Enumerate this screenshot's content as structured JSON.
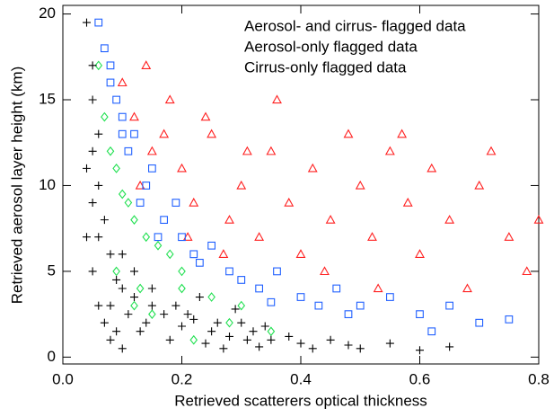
{
  "chart_data": {
    "type": "scatter",
    "xlabel": "Retrieved scatterers optical thickness",
    "ylabel": "Retrieved aerosol layer height (km)",
    "xlim": [
      0,
      0.8
    ],
    "ylim": [
      -0.4,
      20.5
    ],
    "xticks": [
      {
        "value": 0,
        "label": "0.0"
      },
      0.2,
      0.4,
      0.6,
      0.8
    ],
    "yticks": [
      0,
      5,
      10,
      15,
      20
    ],
    "grid": false,
    "legend": "upper right",
    "series": [
      {
        "name": "Aerosol- and cirrus- flagged data",
        "color": "#ff2020",
        "marker": "triangle",
        "x": [
          0.1,
          0.12,
          0.15,
          0.13,
          0.18,
          0.2,
          0.22,
          0.25,
          0.28,
          0.3,
          0.33,
          0.35,
          0.38,
          0.4,
          0.42,
          0.45,
          0.48,
          0.5,
          0.52,
          0.55,
          0.58,
          0.6,
          0.62,
          0.65,
          0.68,
          0.7,
          0.72,
          0.75,
          0.78,
          0.8,
          0.14,
          0.17,
          0.21,
          0.24,
          0.27,
          0.31,
          0.36,
          0.44,
          0.53,
          0.57
        ],
        "values": [
          16,
          14,
          12,
          10,
          15,
          11,
          9,
          13,
          8,
          10,
          7,
          12,
          9,
          6,
          11,
          8,
          13,
          10,
          7,
          12,
          9,
          6,
          11,
          8,
          4,
          10,
          12,
          7,
          5,
          8,
          17,
          13,
          7,
          14,
          6,
          12,
          15,
          5,
          4,
          13
        ]
      },
      {
        "name": "Aerosol-only flagged data",
        "color": "#2060ff",
        "marker": "square",
        "x": [
          0.06,
          0.07,
          0.08,
          0.09,
          0.1,
          0.11,
          0.12,
          0.14,
          0.15,
          0.17,
          0.19,
          0.2,
          0.22,
          0.25,
          0.28,
          0.3,
          0.33,
          0.36,
          0.4,
          0.43,
          0.46,
          0.5,
          0.55,
          0.6,
          0.65,
          0.7,
          0.75,
          0.08,
          0.1,
          0.13,
          0.16,
          0.23,
          0.35,
          0.48,
          0.62
        ],
        "values": [
          19.5,
          18,
          17,
          15,
          14,
          12,
          13,
          10,
          11,
          8,
          9,
          7,
          6,
          6.5,
          5,
          4.5,
          4,
          5,
          3.5,
          3,
          4,
          3,
          3.5,
          2.5,
          3,
          2,
          2.2,
          16,
          13,
          9,
          7,
          5.5,
          3.2,
          2.5,
          1.5
        ]
      },
      {
        "name": "Cirrus-only flagged data",
        "color": "#20e050",
        "marker": "diamond",
        "x": [
          0.06,
          0.07,
          0.08,
          0.09,
          0.1,
          0.11,
          0.12,
          0.14,
          0.16,
          0.18,
          0.2,
          0.09,
          0.12,
          0.15,
          0.2,
          0.25,
          0.3,
          0.35,
          0.28,
          0.22,
          0.13
        ],
        "values": [
          17,
          14,
          12,
          11,
          9.5,
          9,
          8,
          7,
          6.5,
          6,
          5,
          5,
          3,
          2.5,
          4,
          3.5,
          3,
          1.5,
          2,
          1,
          4
        ]
      },
      {
        "color": "#000000",
        "marker": "plus",
        "x": [
          0.04,
          0.05,
          0.05,
          0.06,
          0.04,
          0.05,
          0.07,
          0.06,
          0.08,
          0.05,
          0.09,
          0.1,
          0.12,
          0.08,
          0.11,
          0.14,
          0.15,
          0.13,
          0.17,
          0.2,
          0.18,
          0.22,
          0.25,
          0.24,
          0.28,
          0.3,
          0.27,
          0.32,
          0.35,
          0.33,
          0.38,
          0.4,
          0.42,
          0.45,
          0.48,
          0.5,
          0.55,
          0.6,
          0.65,
          0.06,
          0.07,
          0.09,
          0.1,
          0.12,
          0.15,
          0.19,
          0.21,
          0.23,
          0.26,
          0.29,
          0.31,
          0.34,
          0.04,
          0.05,
          0.06,
          0.08,
          0.1
        ],
        "values": [
          19.5,
          17,
          15,
          13,
          11,
          9,
          8,
          7,
          6,
          5,
          4.5,
          4,
          3.5,
          3,
          2.5,
          2,
          3,
          1.5,
          2.5,
          1.8,
          1,
          2.2,
          1.5,
          0.8,
          1.2,
          2,
          0.5,
          1.5,
          1,
          0.6,
          1.2,
          0.8,
          0.5,
          1,
          0.7,
          0.5,
          0.8,
          0.4,
          0.6,
          3,
          2,
          1.5,
          6,
          5,
          4,
          3,
          2.5,
          3.5,
          2,
          2.8,
          1,
          1.8,
          7,
          12,
          10,
          1,
          0.5
        ]
      }
    ]
  }
}
